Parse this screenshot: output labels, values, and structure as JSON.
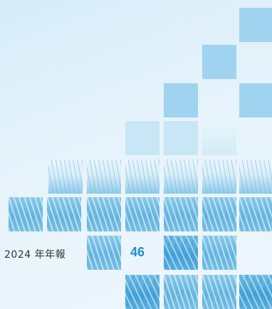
{
  "footer": {
    "report_label": "2024 年年報",
    "page_number": "46"
  },
  "colors": {
    "accent": "#1a8fcd",
    "tile": "#9fd3f0"
  }
}
